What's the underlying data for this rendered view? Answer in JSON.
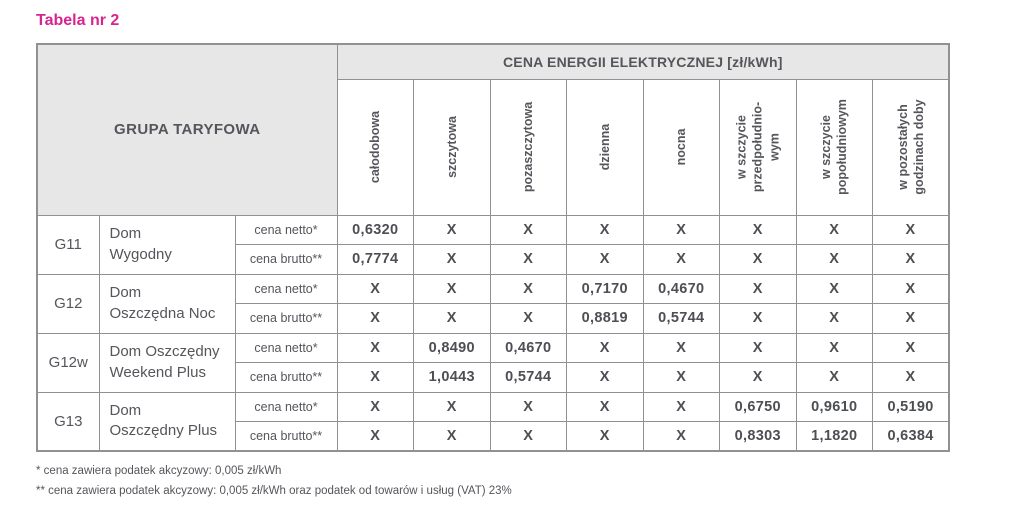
{
  "title": "Tabela nr 2",
  "colors": {
    "accent": "#d7258f",
    "header_bg": "#e7e7e7",
    "text": "#54565b",
    "border": "#8f9194"
  },
  "table": {
    "corner_header": "GRUPA TARYFOWA",
    "main_header": "CENA ENERGII ELEKTRYCZNEJ [zł/kWh]",
    "column_headers": [
      "całodobowa",
      "szczytowa",
      "pozaszczytowa",
      "dzienna",
      "nocna",
      "w szczycie\nprzedpołudnio-\nwym",
      "w szczycie\npopołudniowym",
      "w pozostałych\ngodzinach doby"
    ],
    "groups": [
      {
        "code": "G11",
        "name": "Dom\nWygodny",
        "rows": [
          {
            "label": "cena netto*",
            "values": [
              "0,6320",
              "X",
              "X",
              "X",
              "X",
              "X",
              "X",
              "X"
            ]
          },
          {
            "label": "cena brutto**",
            "values": [
              "0,7774",
              "X",
              "X",
              "X",
              "X",
              "X",
              "X",
              "X"
            ]
          }
        ]
      },
      {
        "code": "G12",
        "name": "Dom\nOszczędna Noc",
        "rows": [
          {
            "label": "cena netto*",
            "values": [
              "X",
              "X",
              "X",
              "0,7170",
              "0,4670",
              "X",
              "X",
              "X"
            ]
          },
          {
            "label": "cena brutto**",
            "values": [
              "X",
              "X",
              "X",
              "0,8819",
              "0,5744",
              "X",
              "X",
              "X"
            ]
          }
        ]
      },
      {
        "code": "G12w",
        "name": "Dom Oszczędny\nWeekend Plus",
        "rows": [
          {
            "label": "cena netto*",
            "values": [
              "X",
              "0,8490",
              "0,4670",
              "X",
              "X",
              "X",
              "X",
              "X"
            ]
          },
          {
            "label": "cena brutto**",
            "values": [
              "X",
              "1,0443",
              "0,5744",
              "X",
              "X",
              "X",
              "X",
              "X"
            ]
          }
        ]
      },
      {
        "code": "G13",
        "name": "Dom\nOszczędny Plus",
        "rows": [
          {
            "label": "cena netto*",
            "values": [
              "X",
              "X",
              "X",
              "X",
              "X",
              "0,6750",
              "0,9610",
              "0,5190"
            ]
          },
          {
            "label": "cena brutto**",
            "values": [
              "X",
              "X",
              "X",
              "X",
              "X",
              "0,8303",
              "1,1820",
              "0,6384"
            ]
          }
        ]
      }
    ]
  },
  "footnotes": [
    "* cena zawiera podatek akcyzowy: 0,005 zł/kWh",
    "** cena zawiera podatek akcyzowy: 0,005 zł/kWh oraz podatek od towarów i usług (VAT) 23%"
  ]
}
